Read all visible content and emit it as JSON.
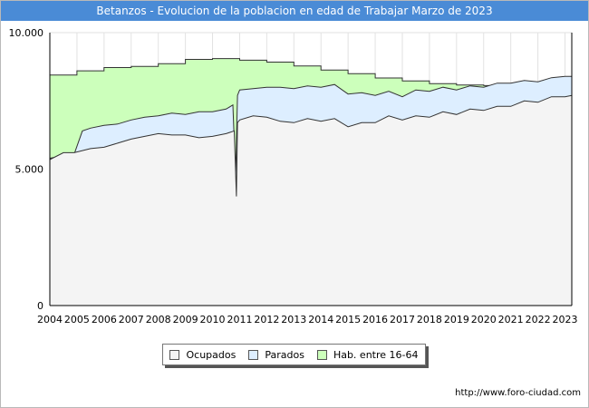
{
  "header": {
    "title": "Betanzos - Evolucion de la poblacion en edad de Trabajar Marzo de 2023"
  },
  "footer": {
    "source": "http://www.foro-ciudad.com"
  },
  "colors": {
    "ocupados": "#f4f4f4",
    "parados": "#ddeeff",
    "hab": "#ccffbb",
    "title_bg": "#4a8bd6"
  },
  "chart_data": {
    "type": "area",
    "title": "Betanzos - Evolucion de la poblacion en edad de Trabajar Marzo de 2023",
    "xlabel": "",
    "ylabel": "",
    "xlim": [
      2004,
      2023.25
    ],
    "ylim": [
      0,
      10000
    ],
    "y_ticks": [
      0,
      5000,
      10000
    ],
    "y_tick_labels": [
      "0",
      "5.000",
      "10.000"
    ],
    "x_ticks": [
      2004,
      2005,
      2006,
      2007,
      2008,
      2009,
      2010,
      2011,
      2012,
      2013,
      2014,
      2015,
      2016,
      2017,
      2018,
      2019,
      2020,
      2021,
      2022,
      2023
    ],
    "x_tick_labels": [
      "2004",
      "2005",
      "2006",
      "2007",
      "2008",
      "2009",
      "2010",
      "2011",
      "2012",
      "2013",
      "2014",
      "2015",
      "2016",
      "2017",
      "2018",
      "2019",
      "2020",
      "2021",
      "2022",
      "2023"
    ],
    "grid": true,
    "legend_position": "bottom-center",
    "legend": [
      "Ocupados",
      "Parados",
      "Hab. entre 16-64"
    ],
    "series": [
      {
        "name": "Hab. entre 16-64",
        "step": true,
        "x": [
          2004,
          2005,
          2006,
          2007,
          2008,
          2009,
          2010,
          2011,
          2012,
          2013,
          2014,
          2015,
          2016,
          2017,
          2018,
          2019,
          2020,
          2021,
          2022,
          2023
        ],
        "values": [
          8450,
          8600,
          8720,
          8760,
          8860,
          9020,
          9050,
          8990,
          8920,
          8780,
          8630,
          8500,
          8340,
          8230,
          8130,
          8080,
          8060,
          8060,
          8150,
          8310
        ]
      },
      {
        "name": "Parados",
        "x": [
          2004,
          2004.9,
          2005.2,
          2005.5,
          2006,
          2006.5,
          2007,
          2007.5,
          2008,
          2008.5,
          2009,
          2009.5,
          2010,
          2010.5,
          2010.75,
          2010.85,
          2010.92,
          2011,
          2011.5,
          2012,
          2012.5,
          2013,
          2013.5,
          2014,
          2014.5,
          2015,
          2015.5,
          2016,
          2016.5,
          2017,
          2017.5,
          2018,
          2018.5,
          2019,
          2019.5,
          2020,
          2020.5,
          2021,
          2021.5,
          2022,
          2022.5,
          2023,
          2023.25
        ],
        "values": [
          5400,
          5550,
          6400,
          6500,
          6600,
          6650,
          6800,
          6900,
          6950,
          7050,
          7000,
          7100,
          7100,
          7200,
          7350,
          4700,
          7700,
          7900,
          7950,
          8000,
          8000,
          7950,
          8050,
          8000,
          8100,
          7750,
          7800,
          7700,
          7850,
          7650,
          7900,
          7850,
          8000,
          7900,
          8050,
          8000,
          8150,
          8150,
          8250,
          8200,
          8350,
          8400,
          8400
        ]
      },
      {
        "name": "Ocupados",
        "x": [
          2004,
          2004.5,
          2004.9,
          2005.5,
          2006,
          2006.5,
          2007,
          2007.5,
          2008,
          2008.5,
          2009,
          2009.5,
          2010,
          2010.5,
          2010.8,
          2010.88,
          2010.92,
          2011,
          2011.5,
          2012,
          2012.5,
          2013,
          2013.5,
          2014,
          2014.5,
          2015,
          2015.5,
          2016,
          2016.5,
          2017,
          2017.5,
          2018,
          2018.5,
          2019,
          2019.5,
          2020,
          2020.5,
          2021,
          2021.5,
          2022,
          2022.5,
          2023,
          2023.25
        ],
        "values": [
          5350,
          5600,
          5600,
          5750,
          5800,
          5950,
          6100,
          6200,
          6300,
          6250,
          6250,
          6150,
          6200,
          6300,
          6400,
          4000,
          6700,
          6800,
          6950,
          6900,
          6750,
          6700,
          6850,
          6750,
          6850,
          6550,
          6700,
          6700,
          6950,
          6800,
          6950,
          6900,
          7100,
          7000,
          7200,
          7150,
          7300,
          7300,
          7500,
          7450,
          7650,
          7650,
          7700
        ]
      }
    ]
  }
}
